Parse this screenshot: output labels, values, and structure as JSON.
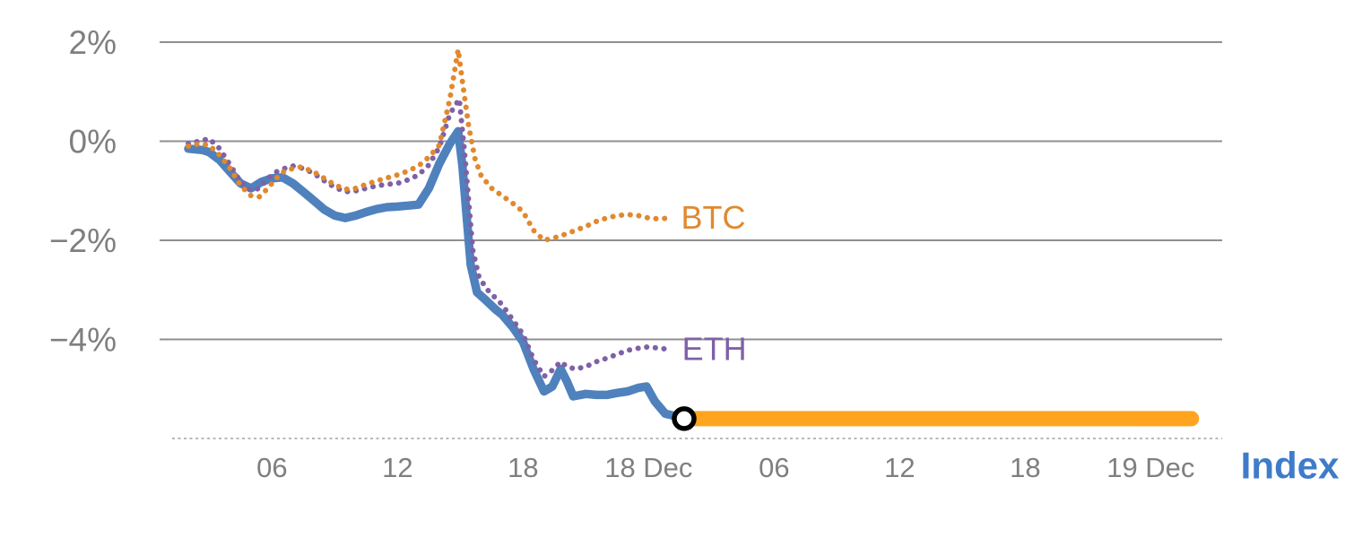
{
  "chart_data": {
    "type": "line",
    "title": "",
    "xlabel": "",
    "ylabel": "",
    "xlim": [
      0,
      48
    ],
    "ylim": [
      -6,
      2
    ],
    "grid": "horizontal-only",
    "colors": {
      "grid": "#8f8f8f",
      "baseline": "#a0a0a0",
      "axis_text": "#7f7f7f",
      "btc": "#e0892e",
      "eth": "#7e61a7",
      "index": "#4f81bd",
      "index_bar": "#ffa41e",
      "index_label": "#3e7cc9",
      "marker_stroke": "#000000",
      "marker_fill": "#ffffff"
    },
    "y_axis": {
      "ticks": [
        {
          "y": 2,
          "label": "2%"
        },
        {
          "y": 0,
          "label": "0%"
        },
        {
          "y": -2,
          "label": "−2%"
        },
        {
          "y": -4,
          "label": "−4%"
        }
      ],
      "baseline": -6
    },
    "x_axis": {
      "ticks": [
        {
          "x": 4,
          "label": "06"
        },
        {
          "x": 10,
          "label": "12"
        },
        {
          "x": 16,
          "label": "18"
        },
        {
          "x": 22,
          "label": "18 Dec"
        },
        {
          "x": 28,
          "label": "06"
        },
        {
          "x": 34,
          "label": "12"
        },
        {
          "x": 40,
          "label": "18"
        },
        {
          "x": 46,
          "label": "19 Dec"
        }
      ]
    },
    "series": [
      {
        "name": "Index",
        "key": "index",
        "style": "solid",
        "width": 9.5,
        "color": "#4f81bd",
        "points": [
          [
            0,
            -0.15
          ],
          [
            0.7,
            -0.18
          ],
          [
            1,
            -0.22
          ],
          [
            1.5,
            -0.38
          ],
          [
            2,
            -0.62
          ],
          [
            2.5,
            -0.85
          ],
          [
            3,
            -0.95
          ],
          [
            3.5,
            -0.82
          ],
          [
            4,
            -0.75
          ],
          [
            4.5,
            -0.73
          ],
          [
            5,
            -0.85
          ],
          [
            5.5,
            -1.02
          ],
          [
            6,
            -1.2
          ],
          [
            6.5,
            -1.38
          ],
          [
            7,
            -1.5
          ],
          [
            7.5,
            -1.55
          ],
          [
            8,
            -1.5
          ],
          [
            8.5,
            -1.43
          ],
          [
            9,
            -1.37
          ],
          [
            9.5,
            -1.33
          ],
          [
            10,
            -1.32
          ],
          [
            10.5,
            -1.3
          ],
          [
            11,
            -1.28
          ],
          [
            11.5,
            -0.95
          ],
          [
            12,
            -0.45
          ],
          [
            12.5,
            -0.05
          ],
          [
            12.9,
            0.2
          ],
          [
            13.1,
            -0.5
          ],
          [
            13.5,
            -2.5
          ],
          [
            13.8,
            -3.05
          ],
          [
            14.2,
            -3.2
          ],
          [
            14.7,
            -3.4
          ],
          [
            15,
            -3.5
          ],
          [
            15.5,
            -3.75
          ],
          [
            16,
            -4.05
          ],
          [
            16.5,
            -4.6
          ],
          [
            17,
            -5.05
          ],
          [
            17.4,
            -4.95
          ],
          [
            17.8,
            -4.6
          ],
          [
            18.1,
            -4.85
          ],
          [
            18.4,
            -5.15
          ],
          [
            19,
            -5.1
          ],
          [
            19.5,
            -5.12
          ],
          [
            20,
            -5.12
          ],
          [
            20.5,
            -5.08
          ],
          [
            21,
            -5.05
          ],
          [
            21.5,
            -4.98
          ],
          [
            21.9,
            -4.95
          ],
          [
            22.3,
            -5.25
          ],
          [
            22.8,
            -5.5
          ],
          [
            23.3,
            -5.55
          ],
          [
            23.7,
            -5.6
          ]
        ]
      },
      {
        "name": "ETH",
        "key": "eth",
        "style": "dotted",
        "width": 6,
        "color": "#7e61a7",
        "label": {
          "text": "ETH",
          "x": 23.6,
          "y": -4.2,
          "size": 36,
          "weight": 400
        },
        "points": [
          [
            0,
            -0.05
          ],
          [
            0.5,
            0.0
          ],
          [
            1,
            0.05
          ],
          [
            1.5,
            -0.15
          ],
          [
            2,
            -0.48
          ],
          [
            2.5,
            -0.82
          ],
          [
            3,
            -1.0
          ],
          [
            3.4,
            -0.95
          ],
          [
            3.8,
            -0.75
          ],
          [
            4.2,
            -0.62
          ],
          [
            4.6,
            -0.55
          ],
          [
            5,
            -0.5
          ],
          [
            5.5,
            -0.55
          ],
          [
            6,
            -0.65
          ],
          [
            6.5,
            -0.8
          ],
          [
            7,
            -0.93
          ],
          [
            7.5,
            -1.02
          ],
          [
            8,
            -1.0
          ],
          [
            8.5,
            -0.95
          ],
          [
            9,
            -0.9
          ],
          [
            9.5,
            -0.87
          ],
          [
            10,
            -0.85
          ],
          [
            10.5,
            -0.78
          ],
          [
            11,
            -0.68
          ],
          [
            11.5,
            -0.48
          ],
          [
            12,
            -0.12
          ],
          [
            12.5,
            0.55
          ],
          [
            12.95,
            0.85
          ],
          [
            13.2,
            -0.2
          ],
          [
            13.6,
            -2.2
          ],
          [
            13.9,
            -2.75
          ],
          [
            14.3,
            -3.0
          ],
          [
            15,
            -3.3
          ],
          [
            15.5,
            -3.6
          ],
          [
            16,
            -3.9
          ],
          [
            16.5,
            -4.4
          ],
          [
            17,
            -4.75
          ],
          [
            17.4,
            -4.62
          ],
          [
            17.8,
            -4.45
          ],
          [
            18.1,
            -4.55
          ],
          [
            18.5,
            -4.6
          ],
          [
            19,
            -4.55
          ],
          [
            19.5,
            -4.45
          ],
          [
            20,
            -4.38
          ],
          [
            20.5,
            -4.3
          ],
          [
            21,
            -4.22
          ],
          [
            21.5,
            -4.18
          ],
          [
            22,
            -4.15
          ],
          [
            22.5,
            -4.18
          ],
          [
            23,
            -4.2
          ]
        ]
      },
      {
        "name": "BTC",
        "key": "btc",
        "style": "dotted",
        "width": 6,
        "color": "#e0892e",
        "label": {
          "text": "BTC",
          "x": 23.55,
          "y": -1.55,
          "size": 36,
          "weight": 400
        },
        "points": [
          [
            0,
            -0.1
          ],
          [
            0.5,
            -0.05
          ],
          [
            1,
            -0.08
          ],
          [
            1.5,
            -0.28
          ],
          [
            2,
            -0.55
          ],
          [
            2.5,
            -0.9
          ],
          [
            3,
            -1.1
          ],
          [
            3.4,
            -1.12
          ],
          [
            3.8,
            -0.95
          ],
          [
            4.2,
            -0.75
          ],
          [
            4.6,
            -0.6
          ],
          [
            5,
            -0.55
          ],
          [
            5.4,
            -0.52
          ],
          [
            6,
            -0.62
          ],
          [
            6.5,
            -0.75
          ],
          [
            7,
            -0.88
          ],
          [
            7.5,
            -0.97
          ],
          [
            8,
            -0.95
          ],
          [
            8.5,
            -0.87
          ],
          [
            9,
            -0.8
          ],
          [
            9.5,
            -0.74
          ],
          [
            10,
            -0.68
          ],
          [
            10.5,
            -0.6
          ],
          [
            11,
            -0.5
          ],
          [
            11.5,
            -0.32
          ],
          [
            12,
            -0.08
          ],
          [
            12.5,
            0.85
          ],
          [
            12.9,
            1.85
          ],
          [
            13.1,
            1.2
          ],
          [
            13.4,
            0.3
          ],
          [
            13.7,
            -0.35
          ],
          [
            14,
            -0.7
          ],
          [
            14.5,
            -0.95
          ],
          [
            15,
            -1.1
          ],
          [
            15.5,
            -1.25
          ],
          [
            16,
            -1.42
          ],
          [
            16.5,
            -1.8
          ],
          [
            17,
            -2.0
          ],
          [
            17.5,
            -1.95
          ],
          [
            18,
            -1.88
          ],
          [
            18.5,
            -1.8
          ],
          [
            19,
            -1.72
          ],
          [
            19.5,
            -1.62
          ],
          [
            20,
            -1.55
          ],
          [
            20.5,
            -1.5
          ],
          [
            21,
            -1.48
          ],
          [
            21.5,
            -1.5
          ],
          [
            22,
            -1.55
          ],
          [
            22.5,
            -1.57
          ],
          [
            23,
            -1.55
          ]
        ]
      },
      {
        "name": "Index flat segment",
        "key": "index_flat",
        "style": "solid",
        "width": 17,
        "cap": "round",
        "color": "#ffa41e",
        "points": [
          [
            23.7,
            -5.6
          ],
          [
            47.95,
            -5.6
          ]
        ]
      }
    ],
    "annotations": {
      "last_value_marker": {
        "x": 23.7,
        "y": -5.6,
        "r": 11,
        "stroke": "#000000",
        "stroke_width": 5.5,
        "fill": "#ffffff"
      },
      "index_label": {
        "text": "Index",
        "x": 50.3,
        "y": -6.55,
        "size": 42,
        "weight": 700,
        "color": "#3e7cc9"
      }
    },
    "legend": "inline-labels"
  }
}
